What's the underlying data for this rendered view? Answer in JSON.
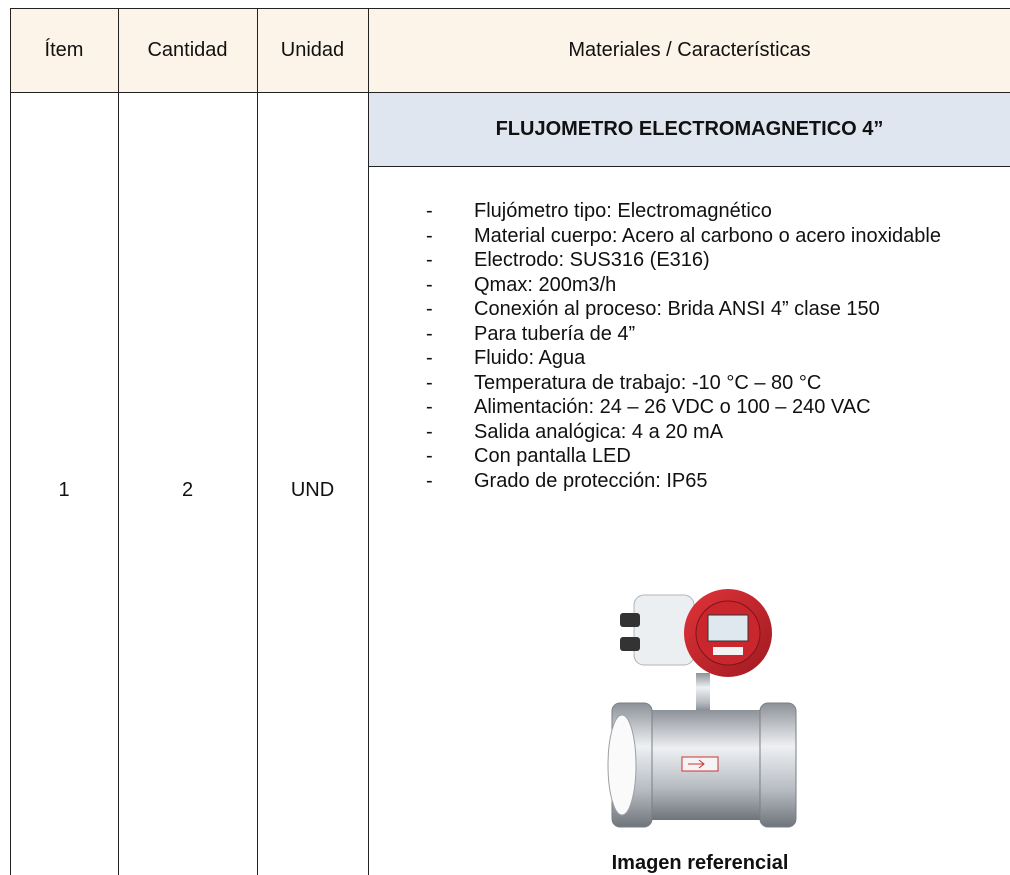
{
  "table": {
    "header": [
      "Ítem",
      "Cantidad",
      "Unidad",
      "Materiales / Características"
    ],
    "rows": [
      {
        "item": "1",
        "quantity": "2",
        "unit": "UND",
        "title": "FLUJOMETRO ELECTROMAGNETICO 4”",
        "features": [
          "Flujómetro tipo: Electromagnético",
          "Material cuerpo: Acero al carbono o acero inoxidable",
          "Electrodo: SUS316 (E316)",
          "Qmax: 200m3/h",
          "Conexión al proceso: Brida ANSI 4” clase 150",
          "Para tubería de 4”",
          "Fluido: Agua",
          "Temperatura de trabajo: -10 °C – 80 °C",
          "Alimentación: 24 – 26 VDC o 100 – 240 VAC",
          "Salida analógica: 4 a 20 mA",
          "Con pantalla LED",
          "Grado de protección: IP65"
        ],
        "image_caption": "Imagen referencial"
      }
    ]
  }
}
